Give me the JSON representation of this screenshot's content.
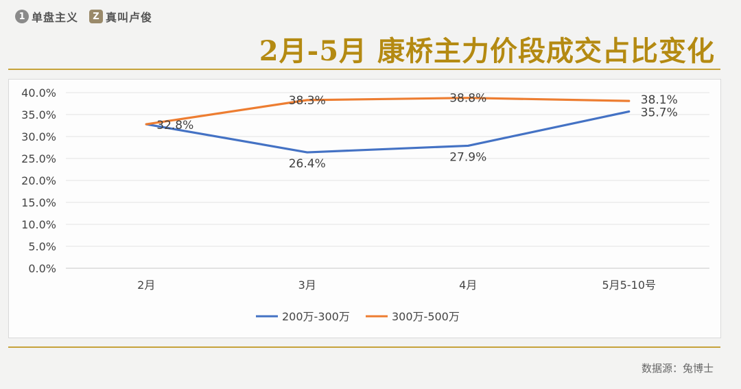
{
  "brand": {
    "item1": {
      "badge": "1",
      "text": "单盘主义"
    },
    "item2": {
      "badge": "Z",
      "text": "真叫卢俊"
    }
  },
  "title": "2月-5月 康桥主力价段成交占比变化",
  "source": "数据源：兔博士",
  "colors": {
    "accent": "#b48a12",
    "rule": "#c6a23a",
    "series1": "#4472c4",
    "series2": "#ed7d31"
  },
  "chart_data": {
    "type": "line",
    "title": "",
    "xlabel": "",
    "ylabel": "",
    "categories": [
      "2月",
      "3月",
      "4月",
      "5月5-10号"
    ],
    "ylim": [
      0,
      40
    ],
    "yticks": [
      0,
      5,
      10,
      15,
      20,
      25,
      30,
      35,
      40
    ],
    "ytick_labels": [
      "0.0%",
      "5.0%",
      "10.0%",
      "15.0%",
      "20.0%",
      "25.0%",
      "30.0%",
      "35.0%",
      "40.0%"
    ],
    "grid": true,
    "legend": "bottom",
    "series": [
      {
        "name": "200万-300万",
        "color": "#4472c4",
        "values": [
          32.8,
          26.4,
          27.9,
          35.7
        ],
        "labels": [
          "32.8%",
          "26.4%",
          "27.9%",
          "35.7%"
        ],
        "show_labels": [
          true,
          true,
          true,
          true
        ]
      },
      {
        "name": "300万-500万",
        "color": "#ed7d31",
        "values": [
          32.8,
          38.3,
          38.8,
          38.1
        ],
        "labels": [
          "32.8%",
          "38.3%",
          "38.8%",
          "38.1%"
        ],
        "show_labels": [
          false,
          true,
          true,
          true
        ]
      }
    ]
  }
}
